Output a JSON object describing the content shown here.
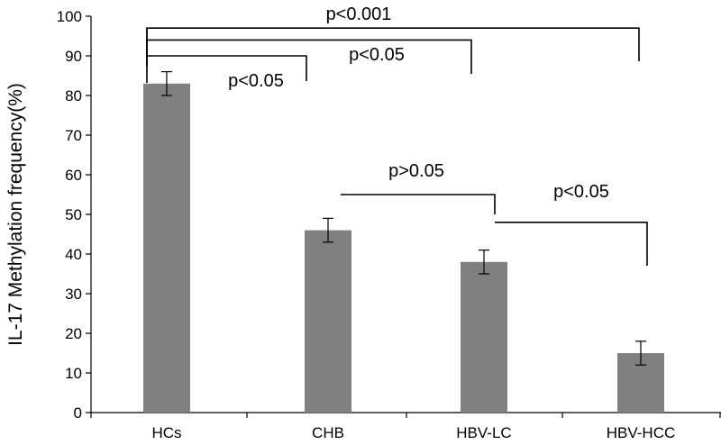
{
  "chart_data": {
    "type": "bar",
    "title": "",
    "xlabel": "",
    "ylabel": "IL-17 Methylation frequency(%)",
    "ylim": [
      0,
      100
    ],
    "yticks": [
      0,
      10,
      20,
      30,
      40,
      50,
      60,
      70,
      80,
      90,
      100
    ],
    "grid": false,
    "legend": "none",
    "categories": [
      "HCs",
      "CHB",
      "HBV-LC",
      "HBV-HCC"
    ],
    "values": [
      83,
      46,
      38,
      15
    ],
    "error": [
      3,
      3,
      3,
      3
    ],
    "bar_color": "#808080",
    "comparisons": [
      {
        "from": "HCs",
        "to": "HBV-HCC",
        "label": "p<0.001",
        "level": 97
      },
      {
        "from": "HCs",
        "to": "HBV-LC",
        "label": "p<0.05",
        "level": 94
      },
      {
        "from": "HCs",
        "to": "CHB",
        "label": "p<0.05",
        "level": 90
      },
      {
        "from": "CHB",
        "to": "HBV-LC",
        "label": "p>0.05",
        "level": 55
      },
      {
        "from": "HBV-LC",
        "to": "HBV-HCC",
        "label": "p<0.05",
        "level": 48
      }
    ]
  }
}
